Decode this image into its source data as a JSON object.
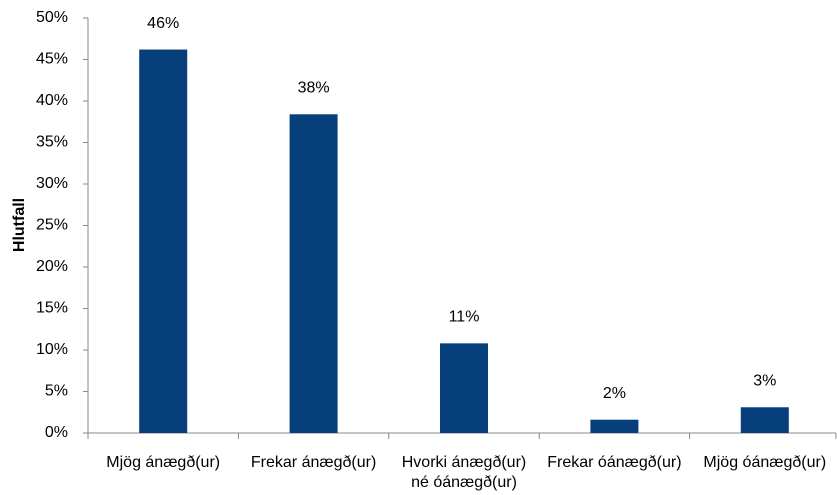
{
  "chart_data": {
    "type": "bar",
    "y_label": "Hlutfall",
    "categories": [
      "Mjög ánægð(ur)",
      "Frekar ánægð(ur)",
      "Hvorki ánægð(ur)\nné óánægð(ur)",
      "Frekar óánægð(ur)",
      "Mjög óánægð(ur)"
    ],
    "values": [
      46.2,
      38.4,
      10.8,
      1.6,
      3.1
    ],
    "value_labels": [
      "46%",
      "38%",
      "11%",
      "2%",
      "3%"
    ],
    "color": "#063f7c",
    "ylim": [
      0,
      50
    ],
    "yticks": [
      {
        "value": 0,
        "label": "0%"
      },
      {
        "value": 5,
        "label": "5%"
      },
      {
        "value": 10,
        "label": "10%"
      },
      {
        "value": 15,
        "label": "15%"
      },
      {
        "value": 20,
        "label": "20%"
      },
      {
        "value": 25,
        "label": "25%"
      },
      {
        "value": 30,
        "label": "30%"
      },
      {
        "value": 35,
        "label": "35%"
      },
      {
        "value": 40,
        "label": "40%"
      },
      {
        "value": 45,
        "label": "45%"
      },
      {
        "value": 50,
        "label": "50%"
      }
    ],
    "grid": false
  }
}
